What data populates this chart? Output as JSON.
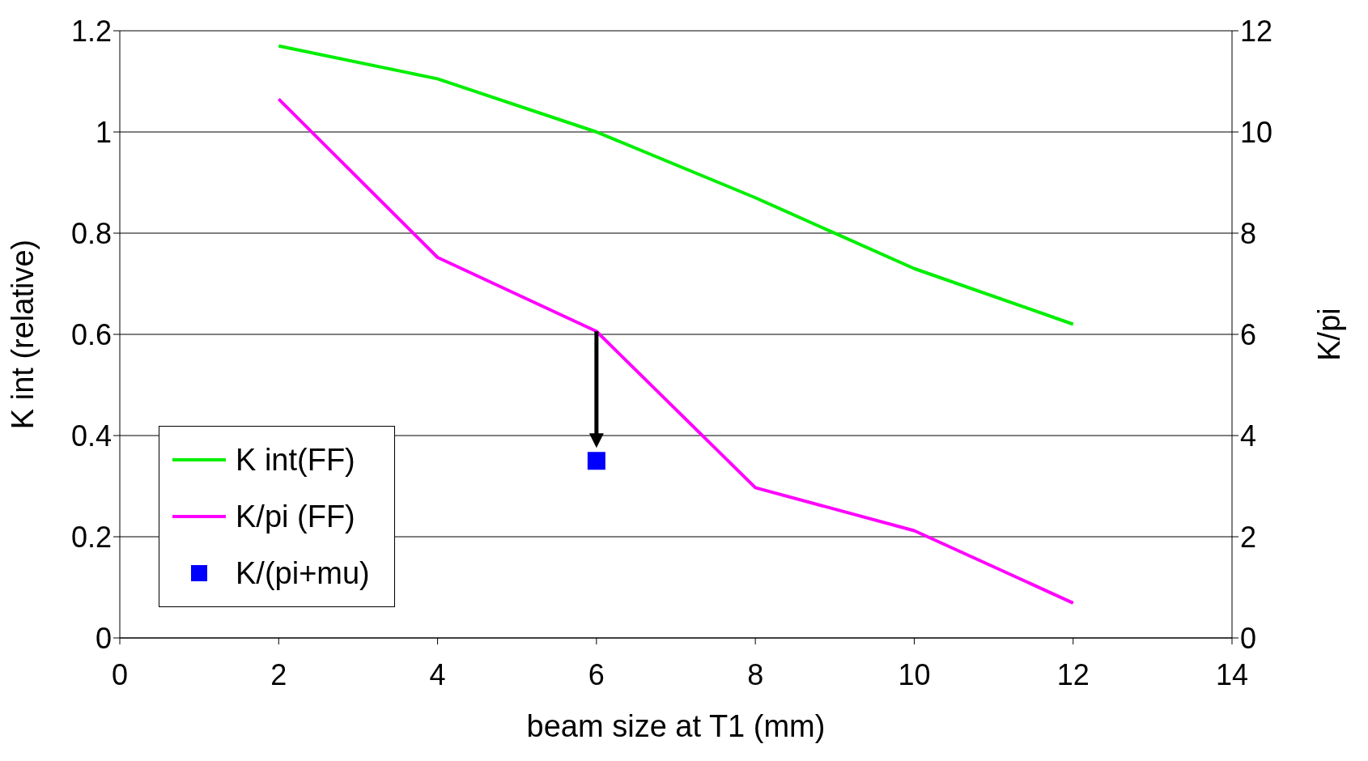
{
  "chart_data": {
    "type": "line",
    "xlabel": "beam size at T1 (mm)",
    "ylabel": "K int (relative)",
    "y2label": "K/pi",
    "x": [
      2,
      4,
      6,
      8,
      10,
      12
    ],
    "series": [
      {
        "name": "K int(FF)",
        "color": "#00ee00",
        "values": [
          1.17,
          1.105,
          1.0,
          0.87,
          0.73,
          0.62
        ]
      },
      {
        "name": "K/pi (FF)",
        "color": "#ff00ff",
        "values": [
          10.65,
          7.52,
          6.06,
          2.97,
          2.12,
          0.69
        ],
        "axis": "y2"
      },
      {
        "name": "K/(pi+mu)",
        "type": "scatter",
        "marker": "square",
        "color": "#0000ff",
        "x": [
          6
        ],
        "values": [
          3.5
        ],
        "axis": "y2"
      }
    ],
    "xlim": [
      0,
      14
    ],
    "xticks": [
      0,
      2,
      4,
      6,
      8,
      10,
      12,
      14
    ],
    "ylim": [
      0,
      1.2
    ],
    "yticks": [
      0,
      0.2,
      0.4,
      0.6,
      0.8,
      1,
      1.2
    ],
    "y2lim": [
      0,
      12
    ],
    "y2ticks": [
      0,
      2,
      4,
      6,
      8,
      10,
      12
    ],
    "grid": "y",
    "legend": "bottom left",
    "marker": "none",
    "line_style": "solid"
  }
}
